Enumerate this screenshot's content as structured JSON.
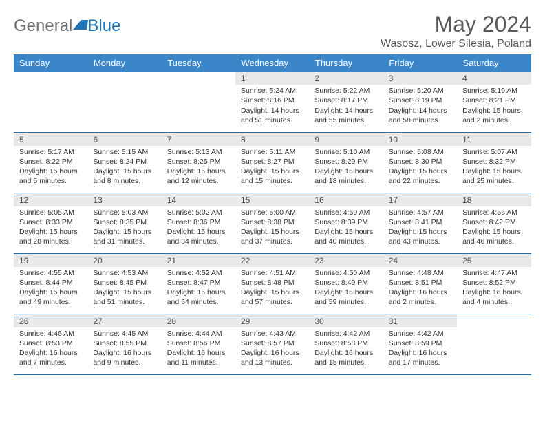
{
  "logo": {
    "text1": "General",
    "text2": "Blue"
  },
  "title": "May 2024",
  "location": "Wasosz, Lower Silesia, Poland",
  "colors": {
    "header_bg": "#3a86c8",
    "header_text": "#ffffff",
    "daynum_bg": "#e8e9ea",
    "border": "#2a6da8",
    "text": "#333333",
    "title_text": "#5a5a5a",
    "logo_blue": "#2176b8"
  },
  "weekdays": [
    "Sunday",
    "Monday",
    "Tuesday",
    "Wednesday",
    "Thursday",
    "Friday",
    "Saturday"
  ],
  "weeks": [
    [
      {
        "empty": true
      },
      {
        "empty": true
      },
      {
        "empty": true
      },
      {
        "day": "1",
        "sunrise": "5:24 AM",
        "sunset": "8:16 PM",
        "daylight": "14 hours and 51 minutes."
      },
      {
        "day": "2",
        "sunrise": "5:22 AM",
        "sunset": "8:17 PM",
        "daylight": "14 hours and 55 minutes."
      },
      {
        "day": "3",
        "sunrise": "5:20 AM",
        "sunset": "8:19 PM",
        "daylight": "14 hours and 58 minutes."
      },
      {
        "day": "4",
        "sunrise": "5:19 AM",
        "sunset": "8:21 PM",
        "daylight": "15 hours and 2 minutes."
      }
    ],
    [
      {
        "day": "5",
        "sunrise": "5:17 AM",
        "sunset": "8:22 PM",
        "daylight": "15 hours and 5 minutes."
      },
      {
        "day": "6",
        "sunrise": "5:15 AM",
        "sunset": "8:24 PM",
        "daylight": "15 hours and 8 minutes."
      },
      {
        "day": "7",
        "sunrise": "5:13 AM",
        "sunset": "8:25 PM",
        "daylight": "15 hours and 12 minutes."
      },
      {
        "day": "8",
        "sunrise": "5:11 AM",
        "sunset": "8:27 PM",
        "daylight": "15 hours and 15 minutes."
      },
      {
        "day": "9",
        "sunrise": "5:10 AM",
        "sunset": "8:29 PM",
        "daylight": "15 hours and 18 minutes."
      },
      {
        "day": "10",
        "sunrise": "5:08 AM",
        "sunset": "8:30 PM",
        "daylight": "15 hours and 22 minutes."
      },
      {
        "day": "11",
        "sunrise": "5:07 AM",
        "sunset": "8:32 PM",
        "daylight": "15 hours and 25 minutes."
      }
    ],
    [
      {
        "day": "12",
        "sunrise": "5:05 AM",
        "sunset": "8:33 PM",
        "daylight": "15 hours and 28 minutes."
      },
      {
        "day": "13",
        "sunrise": "5:03 AM",
        "sunset": "8:35 PM",
        "daylight": "15 hours and 31 minutes."
      },
      {
        "day": "14",
        "sunrise": "5:02 AM",
        "sunset": "8:36 PM",
        "daylight": "15 hours and 34 minutes."
      },
      {
        "day": "15",
        "sunrise": "5:00 AM",
        "sunset": "8:38 PM",
        "daylight": "15 hours and 37 minutes."
      },
      {
        "day": "16",
        "sunrise": "4:59 AM",
        "sunset": "8:39 PM",
        "daylight": "15 hours and 40 minutes."
      },
      {
        "day": "17",
        "sunrise": "4:57 AM",
        "sunset": "8:41 PM",
        "daylight": "15 hours and 43 minutes."
      },
      {
        "day": "18",
        "sunrise": "4:56 AM",
        "sunset": "8:42 PM",
        "daylight": "15 hours and 46 minutes."
      }
    ],
    [
      {
        "day": "19",
        "sunrise": "4:55 AM",
        "sunset": "8:44 PM",
        "daylight": "15 hours and 49 minutes."
      },
      {
        "day": "20",
        "sunrise": "4:53 AM",
        "sunset": "8:45 PM",
        "daylight": "15 hours and 51 minutes."
      },
      {
        "day": "21",
        "sunrise": "4:52 AM",
        "sunset": "8:47 PM",
        "daylight": "15 hours and 54 minutes."
      },
      {
        "day": "22",
        "sunrise": "4:51 AM",
        "sunset": "8:48 PM",
        "daylight": "15 hours and 57 minutes."
      },
      {
        "day": "23",
        "sunrise": "4:50 AM",
        "sunset": "8:49 PM",
        "daylight": "15 hours and 59 minutes."
      },
      {
        "day": "24",
        "sunrise": "4:48 AM",
        "sunset": "8:51 PM",
        "daylight": "16 hours and 2 minutes."
      },
      {
        "day": "25",
        "sunrise": "4:47 AM",
        "sunset": "8:52 PM",
        "daylight": "16 hours and 4 minutes."
      }
    ],
    [
      {
        "day": "26",
        "sunrise": "4:46 AM",
        "sunset": "8:53 PM",
        "daylight": "16 hours and 7 minutes."
      },
      {
        "day": "27",
        "sunrise": "4:45 AM",
        "sunset": "8:55 PM",
        "daylight": "16 hours and 9 minutes."
      },
      {
        "day": "28",
        "sunrise": "4:44 AM",
        "sunset": "8:56 PM",
        "daylight": "16 hours and 11 minutes."
      },
      {
        "day": "29",
        "sunrise": "4:43 AM",
        "sunset": "8:57 PM",
        "daylight": "16 hours and 13 minutes."
      },
      {
        "day": "30",
        "sunrise": "4:42 AM",
        "sunset": "8:58 PM",
        "daylight": "16 hours and 15 minutes."
      },
      {
        "day": "31",
        "sunrise": "4:42 AM",
        "sunset": "8:59 PM",
        "daylight": "16 hours and 17 minutes."
      },
      {
        "empty": true
      }
    ]
  ],
  "labels": {
    "sunrise": "Sunrise:",
    "sunset": "Sunset:",
    "daylight": "Daylight:"
  }
}
